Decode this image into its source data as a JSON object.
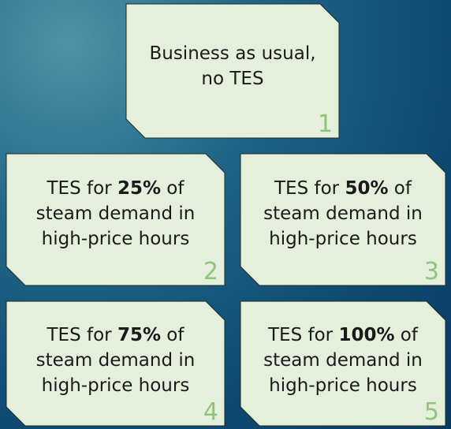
{
  "boxes": [
    {
      "lines": [
        [
          {
            "text": "Business as usual,"
          }
        ],
        [
          {
            "text": "no TES"
          }
        ]
      ],
      "number": 1
    },
    {
      "lines": [
        [
          {
            "text": "TES for "
          },
          {
            "text": "25%",
            "bold": true
          },
          {
            "text": " of"
          }
        ],
        [
          {
            "text": "steam demand in"
          }
        ],
        [
          {
            "text": "high-price hours"
          }
        ]
      ],
      "number": 2
    },
    {
      "lines": [
        [
          {
            "text": "TES for "
          },
          {
            "text": "50%",
            "bold": true
          },
          {
            "text": " of"
          }
        ],
        [
          {
            "text": "steam demand in"
          }
        ],
        [
          {
            "text": "high-price hours"
          }
        ]
      ],
      "number": 3
    },
    {
      "lines": [
        [
          {
            "text": "TES for "
          },
          {
            "text": "75%",
            "bold": true
          },
          {
            "text": " of"
          }
        ],
        [
          {
            "text": "steam demand in"
          }
        ],
        [
          {
            "text": "high-price hours"
          }
        ]
      ],
      "number": 4
    },
    {
      "lines": [
        [
          {
            "text": "TES for "
          },
          {
            "text": "100%",
            "bold": true
          },
          {
            "text": " of"
          }
        ],
        [
          {
            "text": "steam demand in"
          }
        ],
        [
          {
            "text": "high-price hours"
          }
        ]
      ],
      "number": 5
    }
  ]
}
